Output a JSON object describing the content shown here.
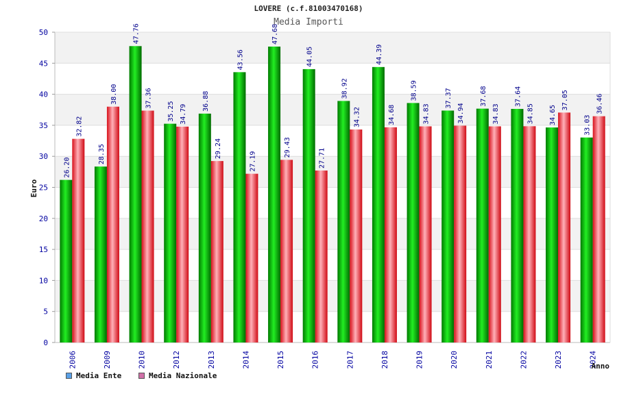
{
  "chart_data": {
    "type": "bar",
    "title": "LOVERE (c.f.81003470168)",
    "subtitle": "Media Importi",
    "xlabel": "Anno",
    "ylabel": "Euro",
    "ylim": [
      0,
      50
    ],
    "yticks": [
      0,
      5,
      10,
      15,
      20,
      25,
      30,
      35,
      40,
      45,
      50
    ],
    "grid": true,
    "legend_position": "bottom-left",
    "categories": [
      "2006",
      "2009",
      "2010",
      "2012",
      "2013",
      "2014",
      "2015",
      "2016",
      "2017",
      "2018",
      "2019",
      "2020",
      "2021",
      "2022",
      "2023",
      "2024"
    ],
    "series": [
      {
        "name": "Media Ente",
        "color": "#00b000",
        "legend_color": "#5aa0e6",
        "values": [
          26.2,
          28.35,
          47.76,
          35.25,
          36.88,
          43.56,
          47.68,
          44.05,
          38.92,
          44.39,
          38.59,
          37.37,
          37.68,
          37.64,
          34.65,
          33.03
        ],
        "labels": [
          "26.20",
          "28.35",
          "47.76",
          "35.25",
          "36.88",
          "43.56",
          "47.68",
          "44.05",
          "38.92",
          "44.39",
          "38.59",
          "37.37",
          "37.68",
          "37.64",
          "34.65",
          "33.03"
        ]
      },
      {
        "name": "Media Nazionale",
        "color": "#e8101a",
        "legend_color": "#d070a8",
        "values": [
          32.82,
          38.0,
          37.36,
          34.79,
          29.24,
          27.19,
          29.43,
          27.71,
          34.32,
          34.68,
          34.83,
          34.94,
          34.83,
          34.85,
          37.05,
          36.46
        ],
        "labels": [
          "32.82",
          "38.00",
          "37.36",
          "34.79",
          "29.24",
          "27.19",
          "29.43",
          "27.71",
          "34.32",
          "34.68",
          "34.83",
          "34.94",
          "34.83",
          "34.85",
          "37.05",
          "36.46"
        ]
      }
    ]
  }
}
